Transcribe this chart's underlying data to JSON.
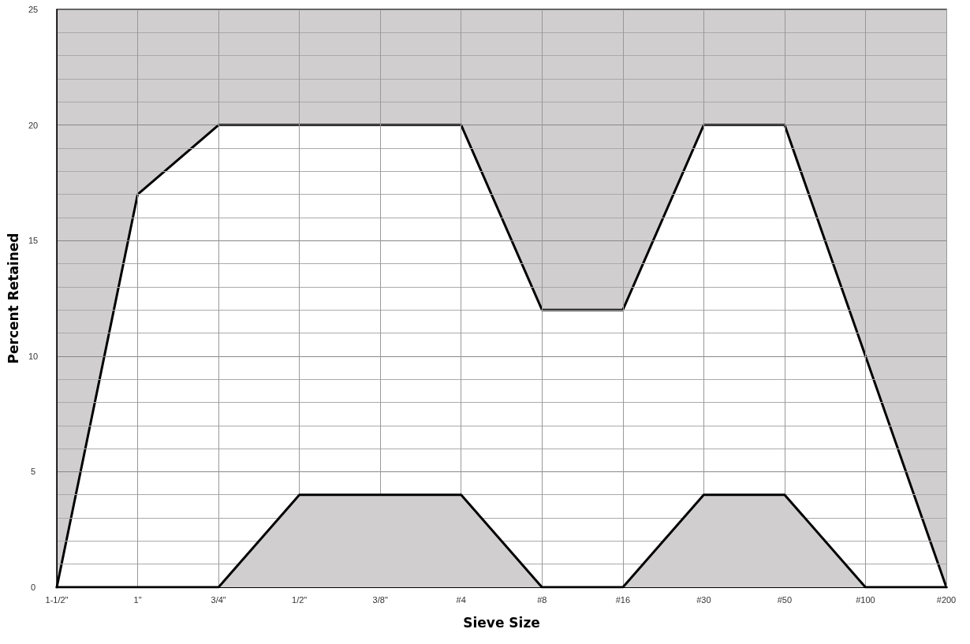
{
  "chart_data": {
    "type": "area",
    "xlabel": "Sieve Size",
    "ylabel": "Percent Retained",
    "categories": [
      "1-1/2\"",
      "1\"",
      "3/4\"",
      "1/2\"",
      "3/8\"",
      "#4",
      "#8",
      "#16",
      "#30",
      "#50",
      "#100",
      "#200"
    ],
    "series": [
      {
        "color": "#000000",
        "values": [
          0,
          17,
          20,
          20,
          20,
          20,
          12,
          12,
          20,
          20,
          10,
          0
        ]
      },
      {
        "color": "#000000",
        "values": [
          0,
          0,
          0,
          4,
          4,
          4,
          0,
          0,
          4,
          4,
          0,
          0
        ]
      }
    ],
    "bands": [
      {
        "axis": "y",
        "from": 0,
        "to": 25,
        "color": "#d0cecf"
      }
    ],
    "ylim": [
      0,
      25
    ],
    "yticks": [
      0,
      5,
      10,
      15,
      20,
      25
    ],
    "grid": true,
    "marker": "none",
    "line_style": "solid"
  }
}
